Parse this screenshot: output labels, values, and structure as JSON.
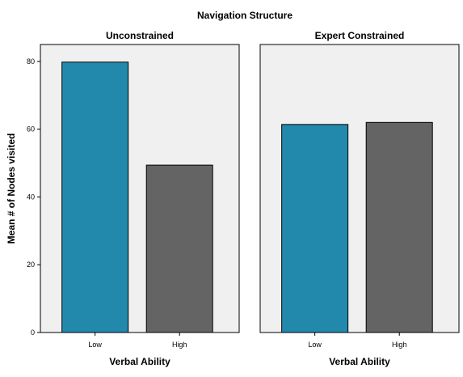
{
  "chart_data": {
    "type": "bar",
    "title": "Navigation Structure",
    "ylabel": "Mean # of Nodes visited",
    "ylim": [
      0,
      85
    ],
    "yticks": [
      0,
      20,
      40,
      60,
      80
    ],
    "grid": false,
    "colors": {
      "Low": "#2389AC",
      "High": "#646464",
      "panel_bg": "#F0F0F0"
    },
    "panels": [
      {
        "title": "Unconstrained",
        "xlabel": "Verbal Ability",
        "categories": [
          "Low",
          "High"
        ],
        "values": [
          79.8,
          49.4
        ]
      },
      {
        "title": "Expert Constrained",
        "xlabel": "Verbal Ability",
        "categories": [
          "Low",
          "High"
        ],
        "values": [
          61.4,
          62.0
        ]
      }
    ]
  }
}
